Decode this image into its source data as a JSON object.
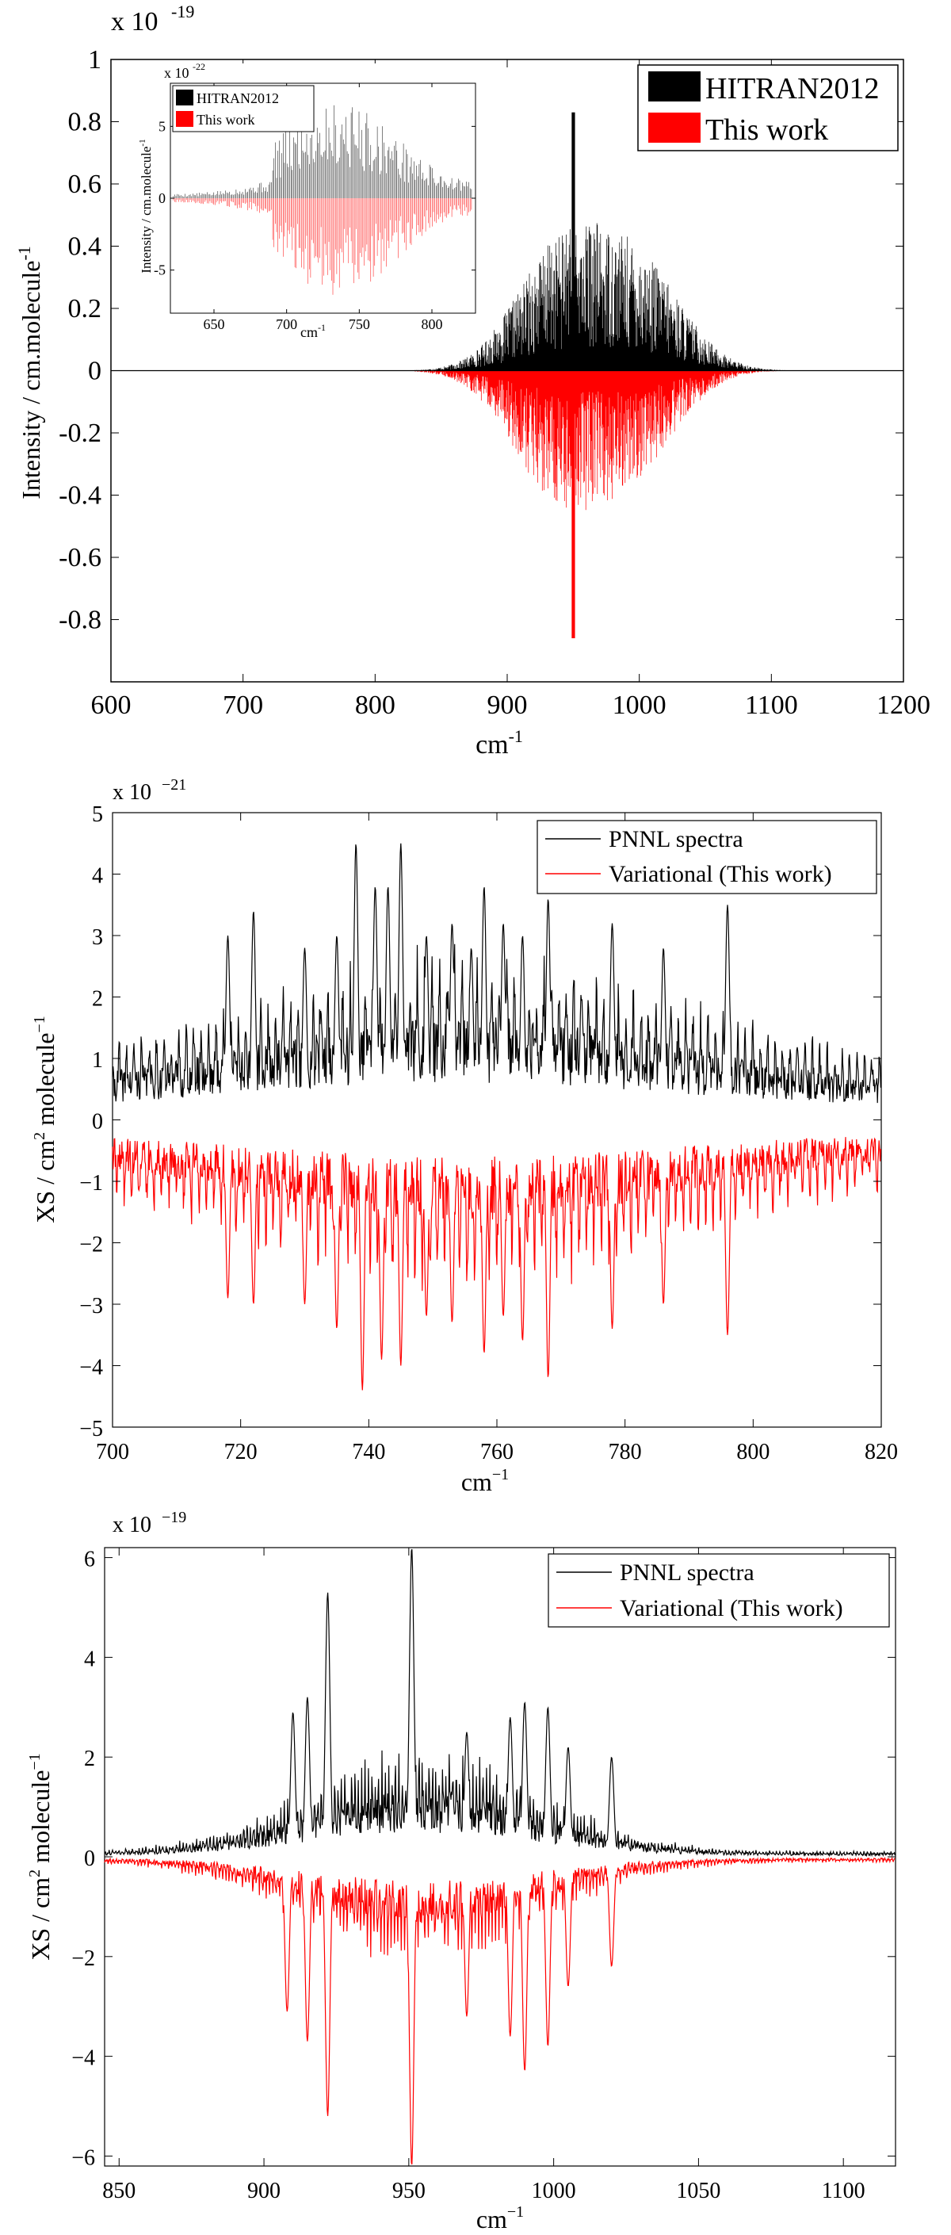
{
  "chart_data": [
    {
      "type": "line",
      "title": "",
      "xlabel": "cm",
      "xlabel_sup": "-1",
      "ylabel": "Intensity / cm.molecule",
      "ylabel_sup": "-1",
      "y_exponent_prefix": "x 10",
      "y_exponent": "-19",
      "xlim": [
        600,
        1200
      ],
      "ylim": [
        -1,
        1
      ],
      "xticks": [
        "600",
        "700",
        "800",
        "900",
        "1000",
        "1100",
        "1200"
      ],
      "yticks": [
        "1",
        "0.8",
        "0.6",
        "0.4",
        "0.2",
        "0",
        "-0.2",
        "-0.4",
        "-0.6",
        "-0.8"
      ],
      "legend": [
        {
          "label": "HITRAN2012",
          "color": "#000000"
        },
        {
          "label": "This work",
          "color": "#ff0000"
        }
      ],
      "legend_position": "top-right",
      "band": {
        "start": 830,
        "end": 1160,
        "center": 950
      },
      "series": [
        {
          "name": "HITRAN2012",
          "sign": 1,
          "peak": 0.83,
          "envelope_peaks": [
            {
              "x": 940,
              "y": 0.38
            },
            {
              "x": 1000,
              "y": 0.32
            }
          ]
        },
        {
          "name": "This work",
          "sign": -1,
          "peak": 0.86,
          "envelope_peaks": [
            {
              "x": 935,
              "y": 0.36
            },
            {
              "x": 995,
              "y": 0.3
            }
          ]
        }
      ],
      "inset": {
        "y_exponent_prefix": "x 10",
        "y_exponent": "-22",
        "ylabel": "Intensity / cm.molecule",
        "ylabel_sup": "-1",
        "xlabel": "cm",
        "xlabel_sup": "-1",
        "xlim": [
          620,
          830
        ],
        "ylim": [
          -8,
          8
        ],
        "xticks": [
          "650",
          "700",
          "750",
          "800"
        ],
        "yticks": [
          "5",
          "0",
          "-5"
        ],
        "legend": [
          {
            "label": "HITRAN2012",
            "color": "#000000"
          },
          {
            "label": "This work",
            "color": "#ff0000"
          }
        ]
      }
    },
    {
      "type": "line",
      "title": "",
      "xlabel": "cm",
      "xlabel_sup": "−1",
      "ylabel": "XS / cm",
      "ylabel_sup": "2",
      "ylabel_tail": " molecule",
      "ylabel_tail_sup": "−1",
      "y_exponent_prefix": "x 10",
      "y_exponent": "−21",
      "xlim": [
        700,
        820
      ],
      "ylim": [
        -5,
        5
      ],
      "xticks": [
        "700",
        "720",
        "740",
        "760",
        "780",
        "800",
        "820"
      ],
      "yticks": [
        "5",
        "4",
        "3",
        "2",
        "1",
        "0",
        "−1",
        "−2",
        "−3",
        "−4",
        "−5"
      ],
      "legend": [
        {
          "label": "PNNL spectra",
          "color": "#000000"
        },
        {
          "label": "Variational (This work)",
          "color": "#ff0000"
        }
      ],
      "legend_position": "top-right",
      "series": [
        {
          "name": "PNNL spectra",
          "sign": 1,
          "baseline": 0.5,
          "peaks": [
            [
              718,
              3.0
            ],
            [
              722,
              3.4
            ],
            [
              730,
              2.8
            ],
            [
              735,
              3.0
            ],
            [
              738,
              4.5
            ],
            [
              741,
              3.8
            ],
            [
              743,
              3.8
            ],
            [
              745,
              4.5
            ],
            [
              749,
              3.0
            ],
            [
              753,
              3.2
            ],
            [
              756,
              2.8
            ],
            [
              758,
              3.8
            ],
            [
              761,
              3.2
            ],
            [
              764,
              3.0
            ],
            [
              768,
              3.6
            ],
            [
              778,
              3.2
            ],
            [
              786,
              2.8
            ],
            [
              796,
              3.5
            ]
          ]
        },
        {
          "name": "Variational (This work)",
          "sign": -1,
          "baseline": 0.5,
          "peaks": [
            [
              718,
              2.9
            ],
            [
              722,
              3.0
            ],
            [
              730,
              3.0
            ],
            [
              735,
              3.4
            ],
            [
              739,
              4.4
            ],
            [
              742,
              3.9
            ],
            [
              745,
              4.0
            ],
            [
              749,
              3.2
            ],
            [
              753,
              3.3
            ],
            [
              758,
              3.8
            ],
            [
              761,
              3.2
            ],
            [
              764,
              3.6
            ],
            [
              768,
              4.2
            ],
            [
              778,
              3.4
            ],
            [
              786,
              3.0
            ],
            [
              796,
              3.5
            ]
          ]
        }
      ]
    },
    {
      "type": "line",
      "title": "",
      "xlabel": "cm",
      "xlabel_sup": "−1",
      "ylabel": "XS / cm",
      "ylabel_sup": "2",
      "ylabel_tail": " molecule",
      "ylabel_tail_sup": "−1",
      "y_exponent_prefix": "x 10",
      "y_exponent": "−19",
      "xlim": [
        845,
        1118
      ],
      "ylim": [
        -6.2,
        6.2
      ],
      "xticks": [
        "850",
        "900",
        "950",
        "1000",
        "1050",
        "1100"
      ],
      "yticks": [
        "6",
        "4",
        "2",
        "0",
        "−2",
        "−4",
        "−6"
      ],
      "legend": [
        {
          "label": "PNNL spectra",
          "color": "#000000"
        },
        {
          "label": "Variational (This work)",
          "color": "#ff0000"
        }
      ],
      "legend_position": "top-right",
      "series": [
        {
          "name": "PNNL spectra",
          "sign": 1,
          "peaks": [
            [
              910,
              2.9
            ],
            [
              915,
              3.2
            ],
            [
              922,
              5.3
            ],
            [
              951,
              6.2
            ],
            [
              970,
              2.5
            ],
            [
              985,
              2.8
            ],
            [
              990,
              3.1
            ],
            [
              998,
              3.0
            ],
            [
              1005,
              2.2
            ],
            [
              1020,
              2.0
            ]
          ]
        },
        {
          "name": "Variational (This work)",
          "sign": -1,
          "peaks": [
            [
              908,
              3.1
            ],
            [
              915,
              3.7
            ],
            [
              922,
              5.2
            ],
            [
              951,
              6.2
            ],
            [
              970,
              3.2
            ],
            [
              985,
              3.6
            ],
            [
              990,
              4.3
            ],
            [
              998,
              3.8
            ],
            [
              1005,
              2.6
            ],
            [
              1020,
              2.2
            ]
          ]
        }
      ]
    }
  ]
}
